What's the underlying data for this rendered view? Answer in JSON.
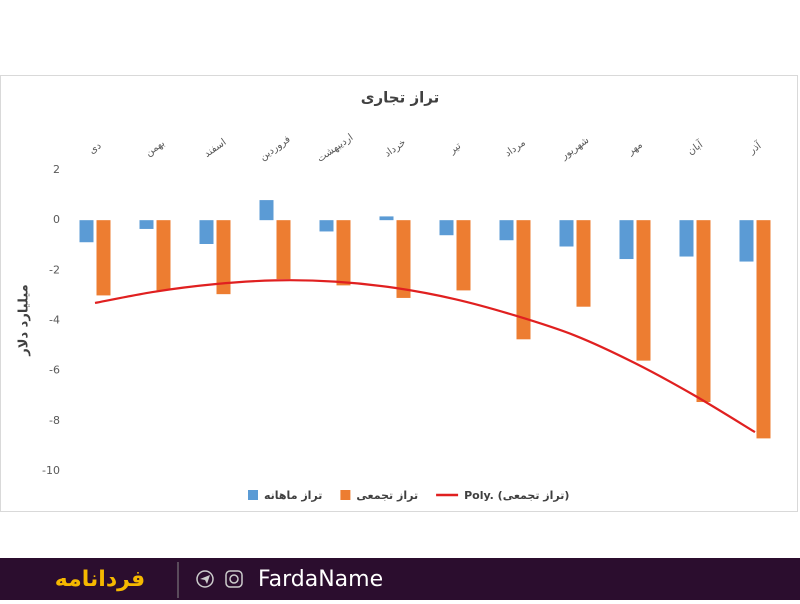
{
  "chart_data": {
    "type": "bar",
    "title": "تراز تجاری",
    "y_label": "میلیارد دلار",
    "categories": [
      "دی",
      "بهمن",
      "اسفند",
      "فروردین",
      "اردیبهشت",
      "خرداد",
      "تیر",
      "مرداد",
      "شهریور",
      "مهر",
      "آبان",
      "آذر"
    ],
    "series": [
      {
        "name": "تراز ماهانه",
        "color": "#5b9bd5",
        "values": [
          -0.88,
          -0.35,
          -0.95,
          0.8,
          -0.45,
          0.15,
          -0.6,
          -0.8,
          -1.05,
          -1.55,
          -1.45,
          -1.65
        ]
      },
      {
        "name": "تراز تجمعی",
        "color": "#ed7d31",
        "values": [
          -3.0,
          -2.8,
          -2.95,
          -2.35,
          -2.6,
          -3.1,
          -2.8,
          -4.75,
          -3.45,
          -5.6,
          -7.25,
          -8.7
        ]
      },
      {
        "name": "Poly. (تراز تجمعی)",
        "color": "#e02020",
        "type": "line",
        "values": [
          -3.3,
          -2.85,
          -2.55,
          -2.4,
          -2.45,
          -2.7,
          -3.15,
          -3.8,
          -4.6,
          -5.7,
          -7.0,
          -8.45
        ]
      }
    ],
    "ylim": [
      -10,
      2
    ],
    "yticks": [
      -10,
      -8,
      -6,
      -4,
      -2,
      0,
      2
    ],
    "grid": false
  },
  "footer": {
    "logo": "فردانامه",
    "brand": "FardaName"
  }
}
